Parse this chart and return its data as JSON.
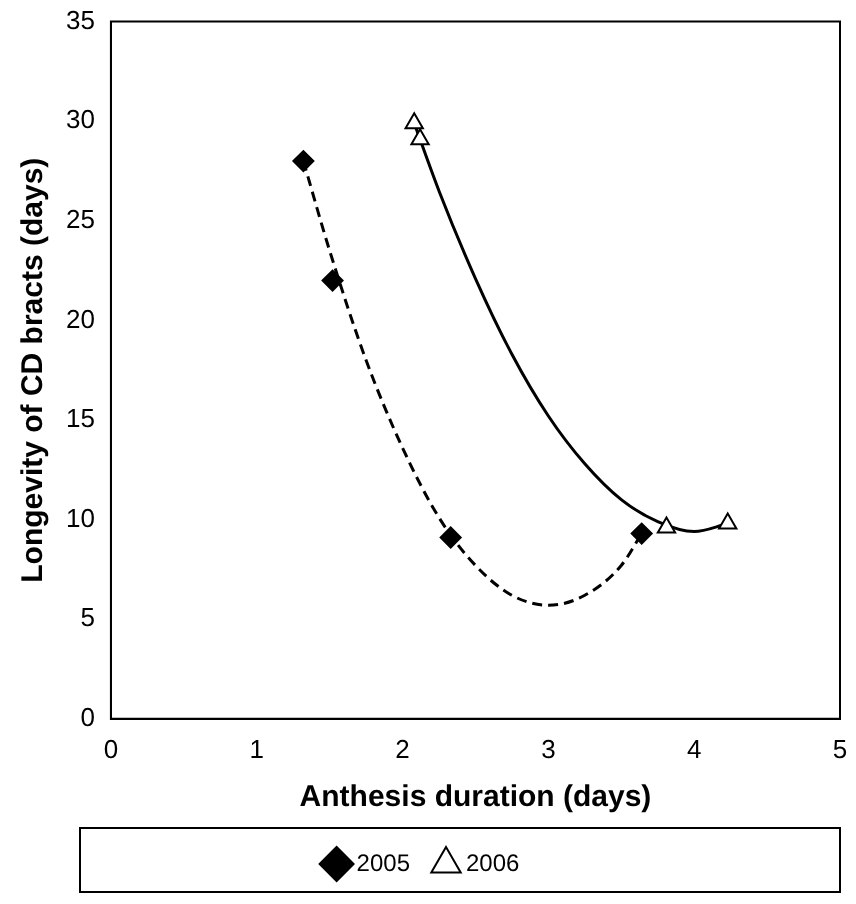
{
  "chart_data": {
    "type": "scatter",
    "xlabel": "Anthesis duration (days)",
    "ylabel": "Longevity of CD bracts (days)",
    "xlim": [
      0,
      5
    ],
    "xticks": [
      0,
      1,
      2,
      3,
      4,
      5
    ],
    "ylim": [
      0,
      35
    ],
    "yticks": [
      0,
      5,
      10,
      15,
      20,
      25,
      30,
      35
    ],
    "grid": false,
    "legend": "bottom",
    "series": [
      {
        "name": "2005",
        "color": "#000000",
        "marker": "diamond",
        "x": [
          1.32,
          1.52,
          2.33,
          3.64
        ],
        "values": [
          28,
          22,
          9.1,
          9.3
        ]
      },
      {
        "name": "2006",
        "color": "#000000",
        "marker": "triangle",
        "x": [
          2.08,
          2.12,
          3.81,
          4.23
        ],
        "values": [
          29.9,
          29.1,
          9.6,
          9.8
        ]
      },
      {
        "type": "line",
        "color": "#000000",
        "marker": "none",
        "line_style": "dashed",
        "x": [
          1.32,
          1.5,
          1.75,
          2.0,
          2.25,
          2.5,
          2.75,
          3.0,
          3.25,
          3.5,
          3.64
        ],
        "values": [
          28,
          23.5,
          18,
          13.6,
          10.1,
          7.7,
          6.2,
          5.7,
          6.2,
          7.7,
          9.3
        ]
      },
      {
        "type": "line",
        "color": "#000000",
        "marker": "none",
        "line_style": "solid",
        "x": [
          2.08,
          2.25,
          2.5,
          2.75,
          3.0,
          3.25,
          3.5,
          3.75,
          4.0,
          4.23
        ],
        "values": [
          29.9,
          26.5,
          22.1,
          18.3,
          15.2,
          12.8,
          11.0,
          9.9,
          9.4,
          9.8
        ]
      }
    ]
  }
}
